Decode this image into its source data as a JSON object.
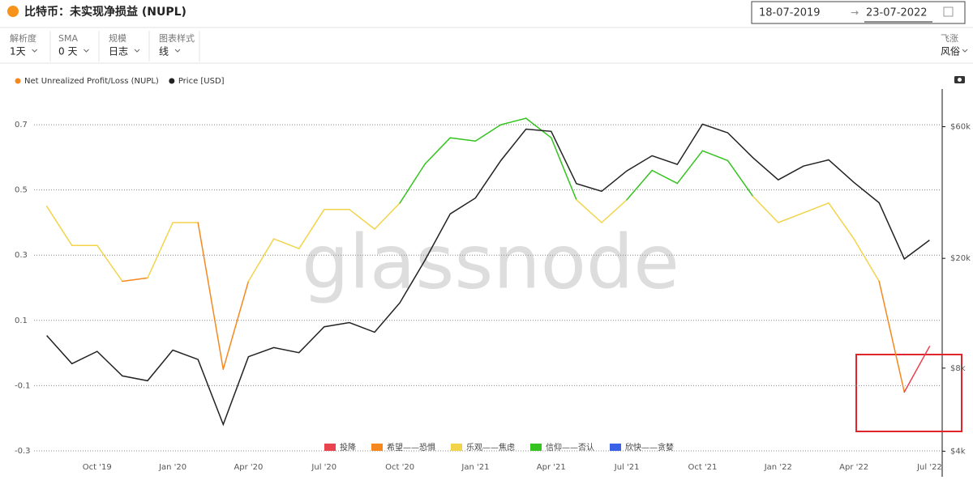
{
  "header": {
    "title": "比特币：未实现净损益 (NUPL)",
    "date_from": "18-07-2019",
    "arrow": "→",
    "date_to": "23-07-2022"
  },
  "controls": [
    {
      "label": "解析度",
      "value": "1天"
    },
    {
      "label": "SMA",
      "value": "0 天"
    },
    {
      "label": "规模",
      "value": "日志"
    },
    {
      "label": "图表样式",
      "value": "线"
    }
  ],
  "controls_right": {
    "label": "飞涨",
    "value": "风俗"
  },
  "chart_data": {
    "type": "line",
    "watermark": "glassnode",
    "categories": [
      null,
      null,
      "Oct '19",
      null,
      null,
      "Jan '20",
      null,
      null,
      "Apr '20",
      null,
      null,
      "Jul '20",
      null,
      null,
      "Oct '20",
      null,
      null,
      "Jan '21",
      null,
      null,
      "Apr '21",
      null,
      null,
      "Jul '21",
      null,
      null,
      "Oct '21",
      null,
      null,
      "Jan '22",
      null,
      null,
      "Apr '22",
      null,
      null,
      "Jul '22"
    ],
    "series": [
      {
        "name": "Net Unrealized Profit/Loss (NUPL)",
        "color": "#f5891f",
        "values": [
          0.45,
          0.33,
          0.33,
          0.22,
          0.23,
          0.4,
          0.4,
          -0.05,
          0.22,
          0.35,
          0.32,
          0.44,
          0.44,
          0.38,
          0.46,
          0.58,
          0.66,
          0.65,
          0.7,
          0.72,
          0.66,
          0.47,
          0.4,
          0.47,
          0.56,
          0.52,
          0.62,
          0.59,
          0.48,
          0.4,
          0.43,
          0.46,
          0.35,
          0.22,
          -0.12,
          0.02
        ]
      },
      {
        "name": "Price [USD]",
        "color": "#222222",
        "axis": "y2",
        "values": [
          10500,
          8300,
          9200,
          7500,
          7200,
          9300,
          8600,
          5000,
          8800,
          9500,
          9100,
          11300,
          11700,
          10800,
          13800,
          19700,
          29000,
          33100,
          45200,
          58800,
          57700,
          37300,
          35000,
          41500,
          47100,
          43800,
          61300,
          57000,
          46300,
          38500,
          43200,
          45500,
          37700,
          31800,
          19900,
          23300
        ]
      }
    ],
    "zones": [
      {
        "name": "投降",
        "color": "#e8434e",
        "max": 0
      },
      {
        "name": "希望——恐惧",
        "color": "#f5891f",
        "min": 0,
        "max": 0.25
      },
      {
        "name": "乐观——焦虑",
        "color": "#f2d44b",
        "min": 0.25,
        "max": 0.5
      },
      {
        "name": "信仰——否认",
        "color": "#35c320",
        "min": 0.5,
        "max": 0.75
      },
      {
        "name": "欣快——贪婪",
        "color": "#3b62e6",
        "min": 0.75
      }
    ],
    "ylim": [
      -0.32,
      0.74
    ],
    "yticks": [
      0.7,
      0.5,
      0.3,
      0.1,
      -0.1,
      -0.3
    ],
    "y2lim": [
      3800,
      68000
    ],
    "y2log": true,
    "y2ticks": [
      {
        "value": 60000,
        "label": "$60k"
      },
      {
        "value": 20000,
        "label": "$20k"
      },
      {
        "value": 8000,
        "label": "$8k"
      },
      {
        "value": 4000,
        "label": "$4k"
      }
    ],
    "grid": true
  }
}
